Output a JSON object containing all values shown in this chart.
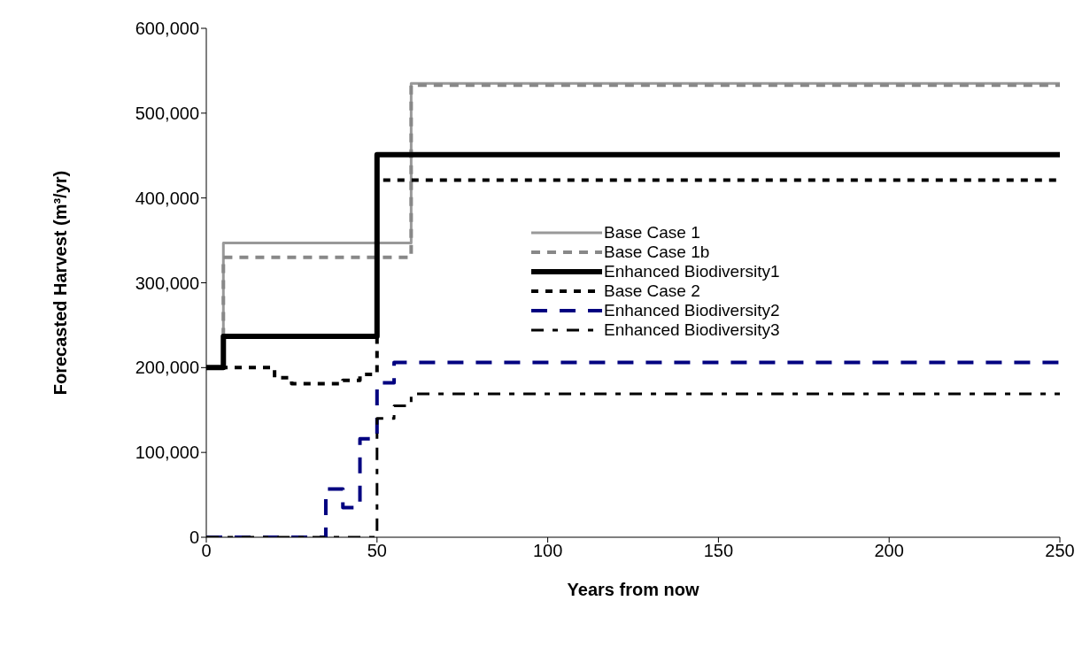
{
  "chart_data": {
    "type": "step",
    "xlabel": "Years from now",
    "ylabel": "Forecasted Harvest (m³/yr)",
    "xlim": [
      0,
      250
    ],
    "xticks": [
      0,
      50,
      100,
      150,
      200,
      250
    ],
    "ylim": [
      0,
      600000
    ],
    "yticks": [
      0,
      {
        "value": 100000,
        "label": "100,000"
      },
      {
        "value": 200000,
        "label": "200,000"
      },
      {
        "value": 300000,
        "label": "300,000"
      },
      {
        "value": 400000,
        "label": "400,000"
      },
      {
        "value": 500000,
        "label": "500,000"
      },
      {
        "value": 600000,
        "label": "600,000"
      }
    ],
    "grid": false,
    "legend": "center right",
    "marker": "none",
    "series": [
      {
        "name": "Base Case 1",
        "color": "#999999",
        "line_style": "solid",
        "x": [
          0,
          5,
          60,
          250
        ],
        "values": [
          200000,
          347000,
          535000,
          535000
        ]
      },
      {
        "name": "Base Case 1b",
        "color": "#888888",
        "line_style": "dashed",
        "x": [
          0,
          5,
          60,
          250
        ],
        "values": [
          200000,
          330000,
          533000,
          533000
        ]
      },
      {
        "name": "Enhanced Biodiversity1",
        "color": "#000000",
        "line_style": "solid",
        "x": [
          0,
          5,
          50,
          250
        ],
        "values": [
          200000,
          237000,
          451000,
          451000
        ]
      },
      {
        "name": "Base Case 2",
        "color": "#000000",
        "line_style": "dotted",
        "x": [
          0,
          20,
          25,
          40,
          45,
          50,
          250
        ],
        "values": [
          200000,
          188000,
          181000,
          185000,
          192000,
          421000,
          421000
        ]
      },
      {
        "name": "Enhanced Biodiversity2",
        "color": "#000080",
        "line_style": "dashed",
        "x": [
          0,
          35,
          40,
          45,
          50,
          55,
          250
        ],
        "values": [
          0,
          57000,
          35000,
          116000,
          182000,
          206000,
          206000
        ]
      },
      {
        "name": "Enhanced Biodiversity3",
        "color": "#000000",
        "line_style": "dashed",
        "x": [
          0,
          50,
          55,
          60,
          250
        ],
        "values": [
          0,
          140000,
          155000,
          169000,
          169000
        ]
      }
    ]
  }
}
